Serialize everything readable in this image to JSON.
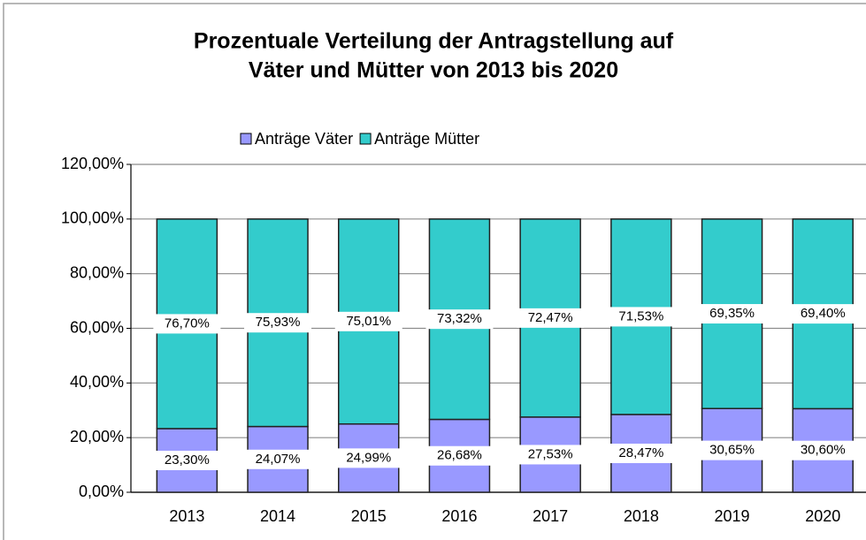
{
  "chart_data": {
    "type": "stacked_bar",
    "title": [
      "Prozentuale Verteilung der Antragstellung auf",
      "Väter und Mütter von 2013 bis 2020"
    ],
    "categories": [
      "2013",
      "2014",
      "2015",
      "2016",
      "2017",
      "2018",
      "2019",
      "2020"
    ],
    "series": [
      {
        "name": "Anträge Väter",
        "color": "#9999ff",
        "values": [
          23.3,
          24.07,
          24.99,
          26.68,
          27.53,
          28.47,
          30.65,
          30.6
        ],
        "value_labels": [
          "23,30%",
          "24,07%",
          "24,99%",
          "26,68%",
          "27,53%",
          "28,47%",
          "30,65%",
          "30,60%"
        ]
      },
      {
        "name": "Anträge Mütter",
        "color": "#33cccc",
        "values": [
          76.7,
          75.93,
          75.01,
          73.32,
          72.47,
          71.53,
          69.35,
          69.4
        ],
        "value_labels": [
          "76,70%",
          "75,93%",
          "75,01%",
          "73,32%",
          "72,47%",
          "71,53%",
          "69,35%",
          "69,40%"
        ]
      }
    ],
    "ylim": [
      0,
      120
    ],
    "yticks": [
      {
        "value": 0,
        "label": "0,00%"
      },
      {
        "value": 20,
        "label": "20,00%"
      },
      {
        "value": 40,
        "label": "40,00%"
      },
      {
        "value": 60,
        "label": "60,00%"
      },
      {
        "value": 80,
        "label": "80,00%"
      },
      {
        "value": 100,
        "label": "100,00%"
      },
      {
        "value": 120,
        "label": "120,00%"
      }
    ],
    "grid": true,
    "legend": "top"
  }
}
